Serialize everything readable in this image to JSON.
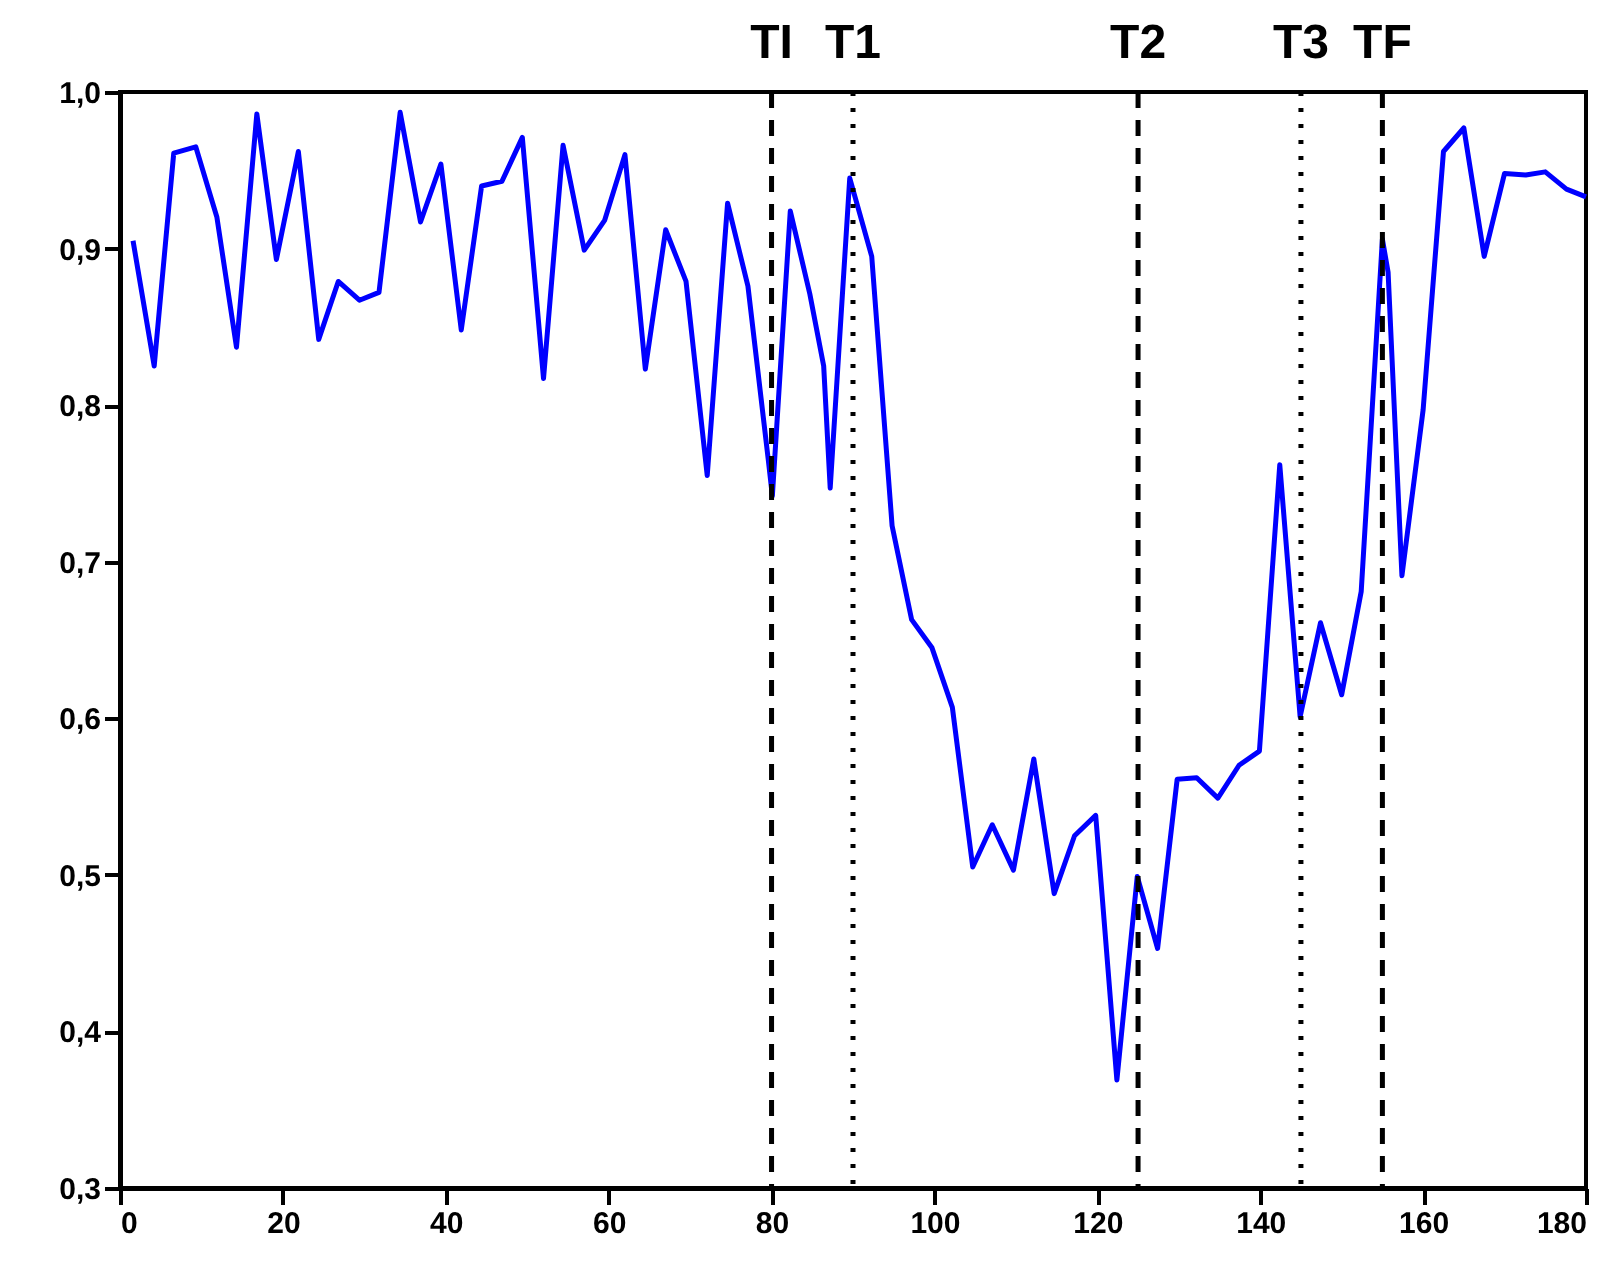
{
  "chart_data": {
    "type": "line",
    "marker": "none",
    "line_style": "solid",
    "grid": false,
    "x": [
      1.6,
      4.2,
      6.6,
      9.3,
      11.9,
      14.3,
      16.8,
      19.2,
      21.9,
      24.4,
      26.8,
      29.4,
      31.8,
      34.4,
      36.9,
      39.4,
      41.9,
      44.4,
      46.9,
      49.4,
      52.0,
      54.4,
      57.0,
      59.5,
      62.0,
      64.5,
      67.0,
      69.5,
      72.1,
      74.6,
      77.1,
      79.6,
      80.1,
      82.3,
      84.7,
      86.4,
      87.2,
      89.6,
      92.3,
      94.8,
      97.2,
      99.7,
      102.2,
      104.7,
      107.1,
      109.7,
      112.2,
      114.7,
      117.2,
      119.8,
      122.4,
      124.9,
      127.4,
      129.8,
      132.2,
      134.8,
      137.4,
      139.9,
      142.4,
      144.9,
      147.4,
      150.0,
      152.4,
      155.0,
      155.7,
      157.4,
      160.0,
      162.5,
      165.0,
      167.5,
      170.0,
      172.6,
      175.0,
      177.6,
      180.0
    ],
    "series": [
      {
        "color": "#0000ff",
        "values": [
          0.905,
          0.825,
          0.961,
          0.965,
          0.92,
          0.837,
          0.986,
          0.893,
          0.962,
          0.842,
          0.879,
          0.867,
          0.872,
          0.987,
          0.917,
          0.954,
          0.848,
          0.94,
          0.943,
          0.971,
          0.817,
          0.966,
          0.899,
          0.918,
          0.96,
          0.823,
          0.912,
          0.879,
          0.755,
          0.929,
          0.876,
          0.765,
          0.742,
          0.924,
          0.871,
          0.825,
          0.747,
          0.945,
          0.895,
          0.723,
          0.663,
          0.645,
          0.607,
          0.505,
          0.532,
          0.503,
          0.574,
          0.488,
          0.525,
          0.538,
          0.369,
          0.499,
          0.453,
          0.561,
          0.562,
          0.549,
          0.57,
          0.579,
          0.762,
          0.601,
          0.661,
          0.615,
          0.681,
          0.906,
          0.885,
          0.691,
          0.797,
          0.962,
          0.977,
          0.895,
          0.948,
          0.947,
          0.949,
          0.938,
          0.933
        ]
      }
    ],
    "xlim": [
      0,
      180
    ],
    "xticks": [
      0,
      20,
      40,
      60,
      80,
      100,
      120,
      140,
      160,
      180
    ],
    "ylim": [
      0.3,
      1.0
    ],
    "yticks": [
      {
        "value": 0.3,
        "label": "0,3"
      },
      {
        "value": 0.4,
        "label": "0,4"
      },
      {
        "value": 0.5,
        "label": "0,5"
      },
      {
        "value": 0.6,
        "label": "0,6"
      },
      {
        "value": 0.7,
        "label": "0,7"
      },
      {
        "value": 0.8,
        "label": "0,8"
      },
      {
        "value": 0.9,
        "label": "0,9"
      },
      {
        "value": 1.0,
        "label": "1,0"
      }
    ],
    "ref_lines": [
      {
        "axis": "x",
        "value": 80,
        "label": "TI",
        "line_style": "dashed",
        "color": "#000000"
      },
      {
        "axis": "x",
        "value": 90,
        "label": "T1",
        "line_style": "dotted",
        "color": "#000000"
      },
      {
        "axis": "x",
        "value": 125,
        "label": "T2",
        "line_style": "dashed",
        "color": "#000000"
      },
      {
        "axis": "x",
        "value": 145,
        "label": "T3",
        "line_style": "dotted",
        "color": "#000000"
      },
      {
        "axis": "x",
        "value": 155,
        "label": "TF",
        "line_style": "dashed",
        "color": "#000000"
      }
    ]
  }
}
